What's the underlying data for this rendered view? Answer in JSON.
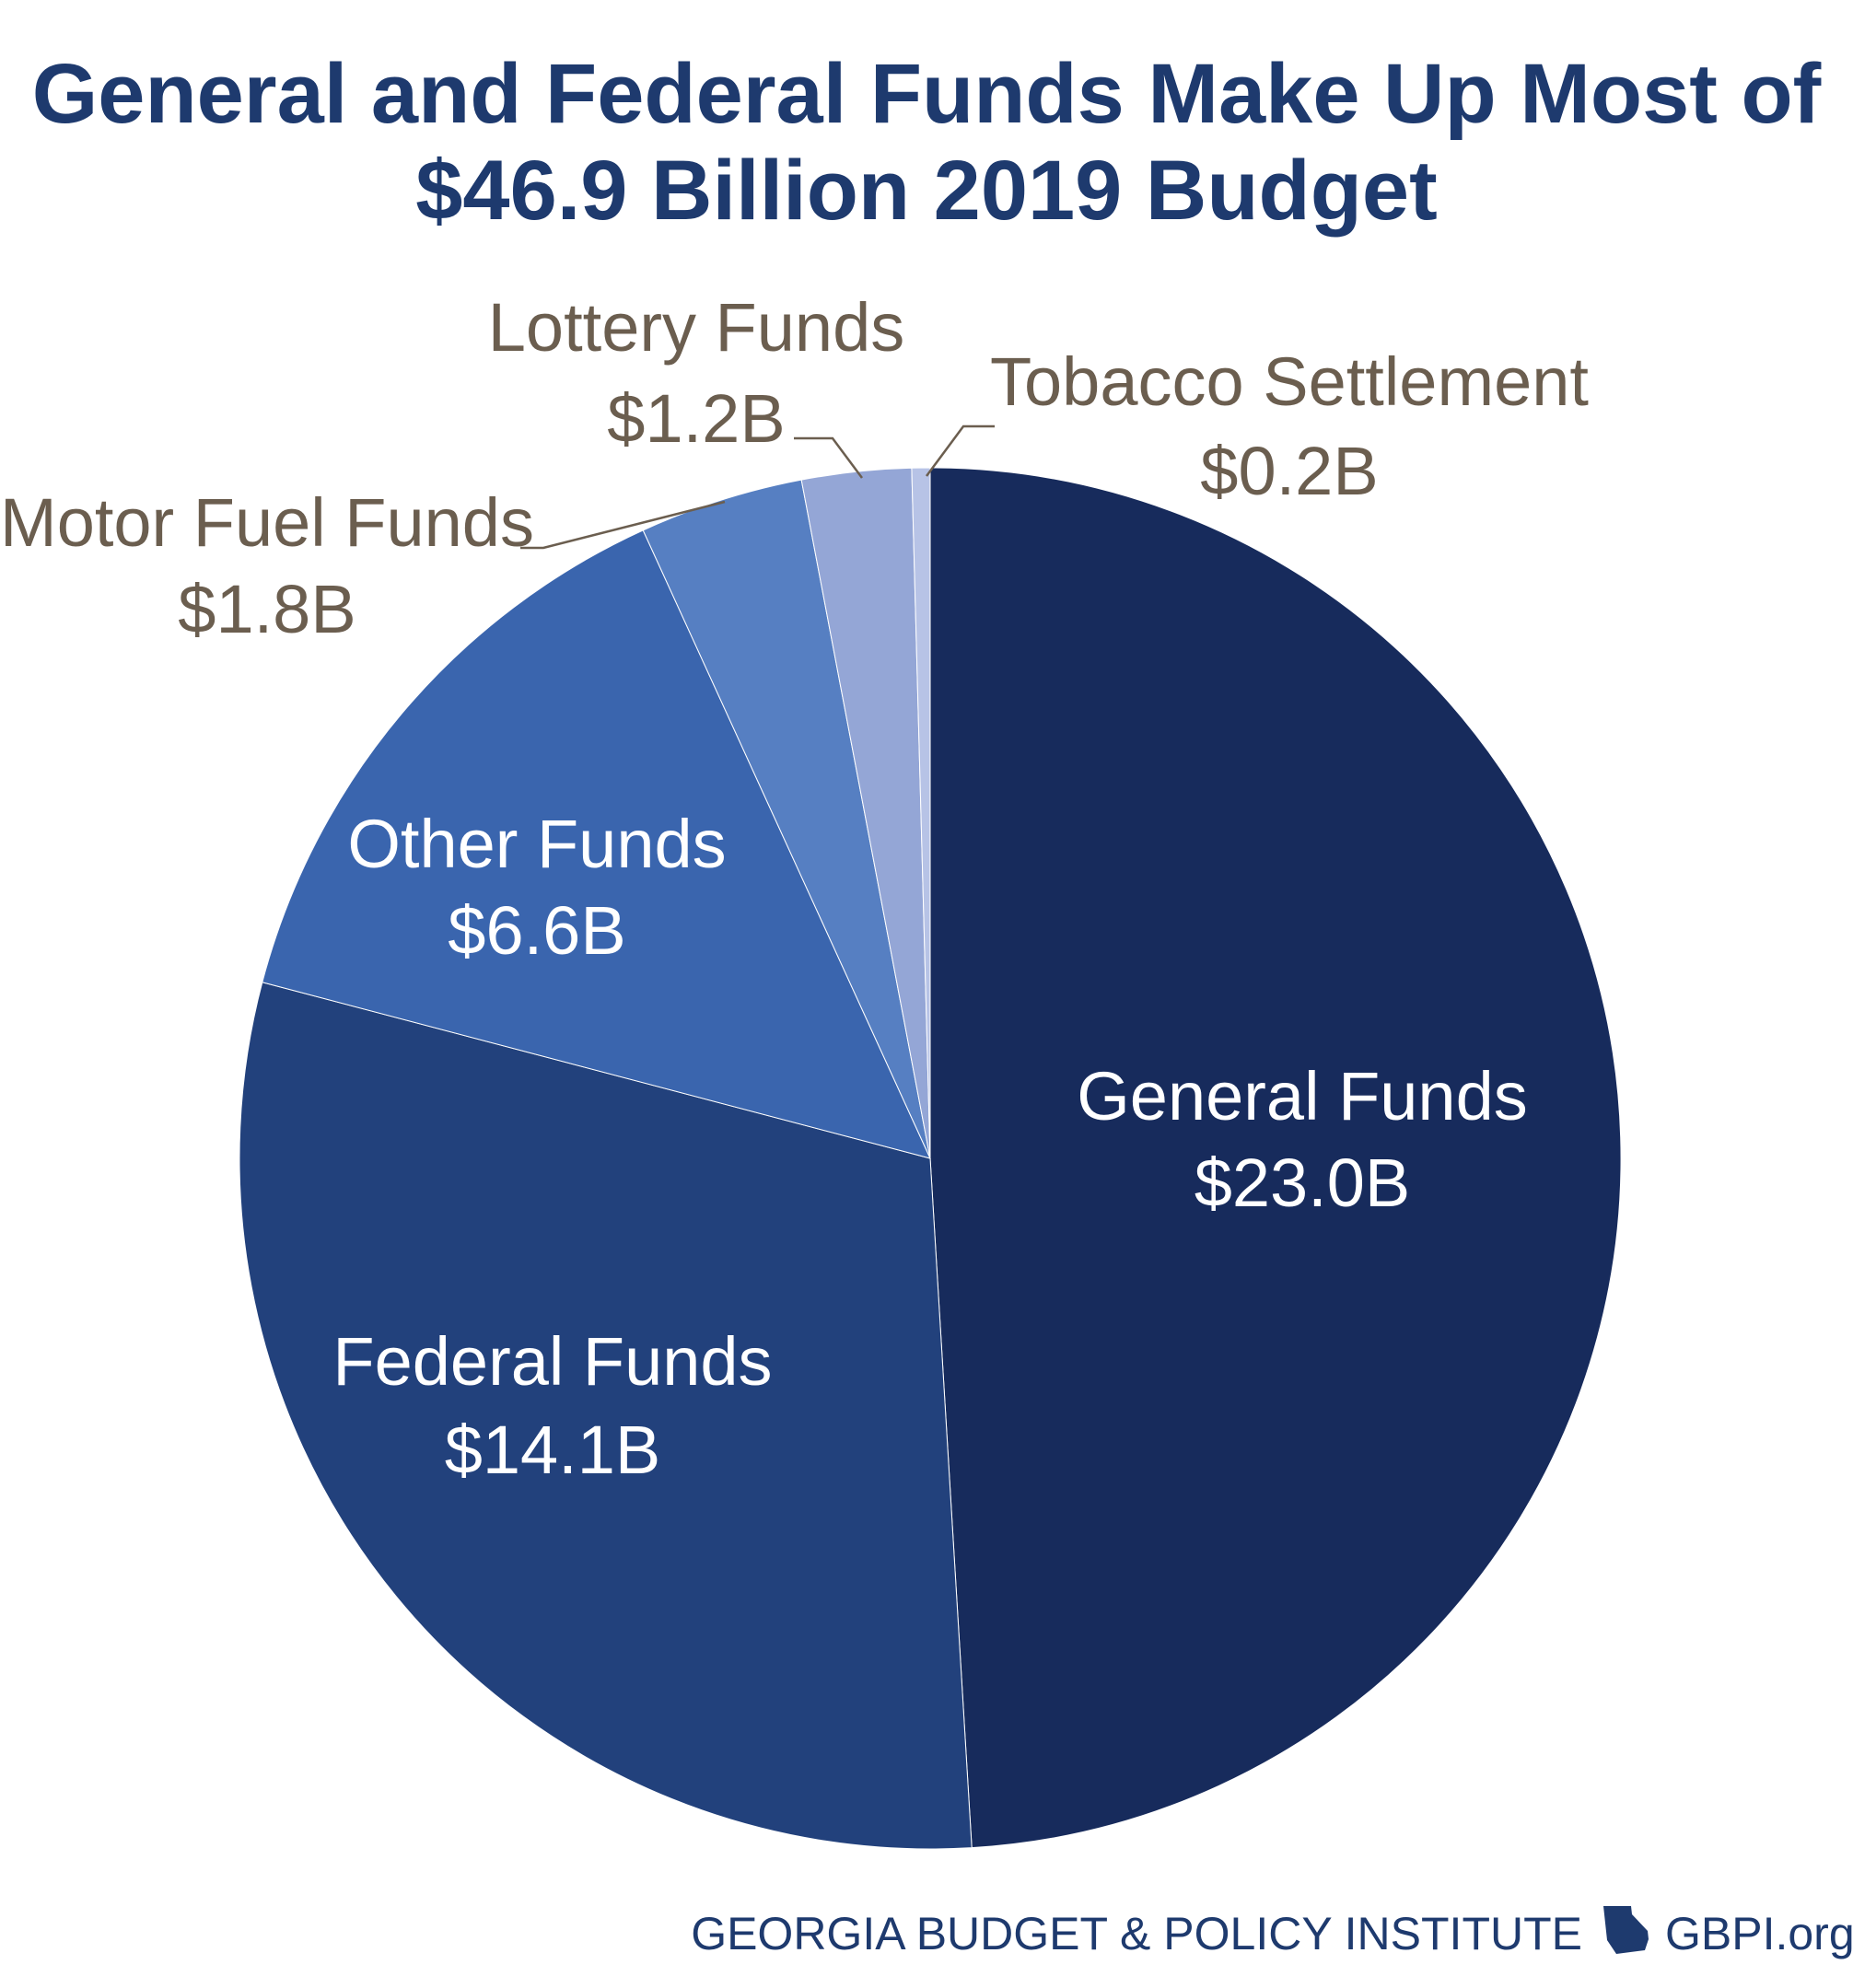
{
  "title_line1": "General and Federal Funds Make Up Most of",
  "title_line2": "$46.9 Billion 2019 Budget",
  "chart_data": {
    "type": "pie",
    "title": "General and Federal Funds Make Up Most of $46.9 Billion 2019 Budget",
    "total": 46.9,
    "units": "billion USD",
    "start": "12 o'clock, clockwise",
    "slices": [
      {
        "id": "general",
        "name": "General Funds",
        "label": "$23.0B",
        "value": 23.0,
        "color": "#172b5c"
      },
      {
        "id": "federal",
        "name": "Federal Funds",
        "label": "$14.1B",
        "value": 14.1,
        "color": "#22417c"
      },
      {
        "id": "other",
        "name": "Other Funds",
        "label": "$6.6B",
        "value": 6.6,
        "color": "#3a65ae"
      },
      {
        "id": "motor",
        "name": "Motor Fuel Funds",
        "label": "$1.8B",
        "value": 1.8,
        "color": "#567fc2"
      },
      {
        "id": "lottery",
        "name": "Lottery Funds",
        "label": "$1.2B",
        "value": 1.2,
        "color": "#94a6d6"
      },
      {
        "id": "tobacco",
        "name": "Tobacco Settlement",
        "label": "$0.2B",
        "value": 0.2,
        "color": "#b7c3e6"
      }
    ],
    "leader_color": "#6b5e4f"
  },
  "footer": {
    "org": "GEORGIA BUDGET & POLICY INSTITUTE",
    "site": "GBPI.org",
    "icon": "georgia-state-icon"
  }
}
